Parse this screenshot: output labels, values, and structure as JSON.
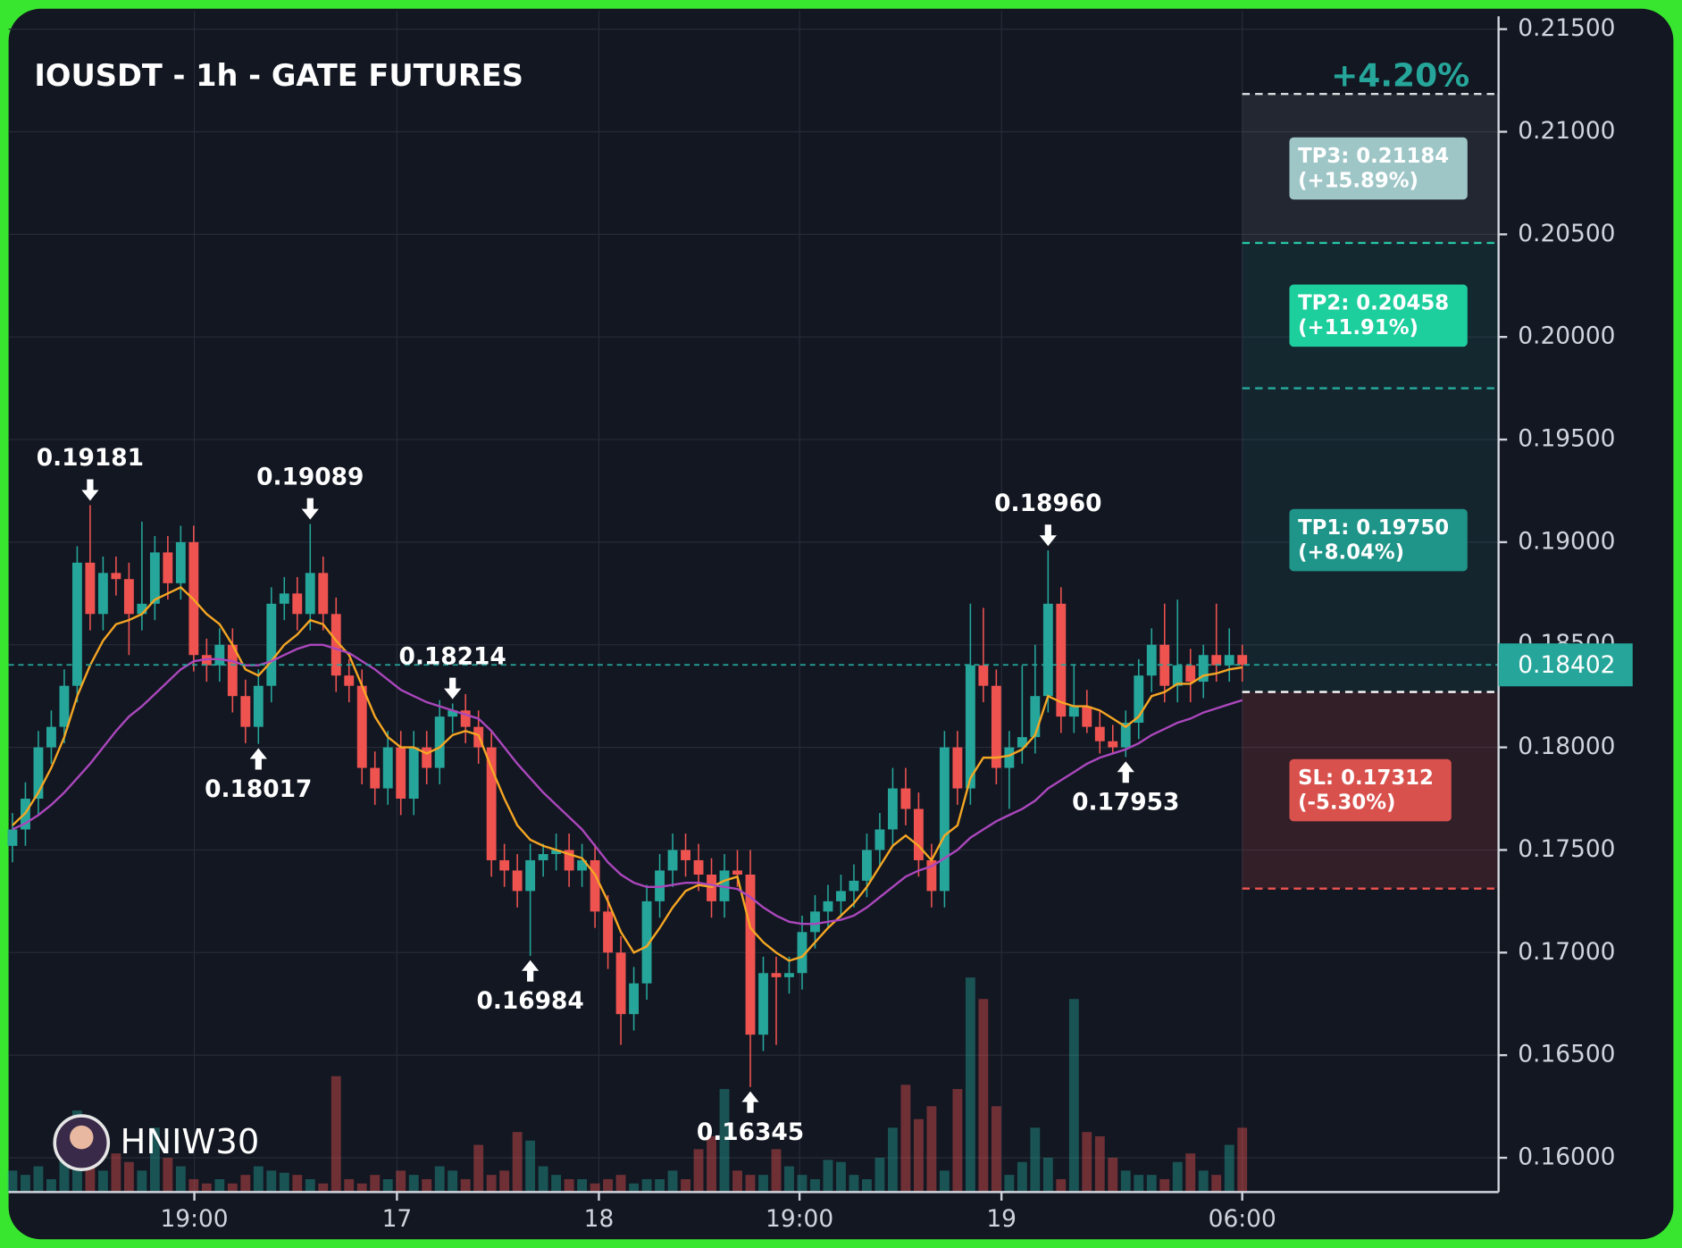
{
  "chart_data": {
    "type": "candlestick",
    "title": "IOUSDT - 1h - GATE FUTURES",
    "watermark": "HNIW30",
    "up_color": "#26a69a",
    "down_color": "#ef5350",
    "grid": true,
    "ylim": [
      0.15833,
      0.21589
    ],
    "yticks": [
      {
        "value": 0.16,
        "label": "0.16000"
      },
      {
        "value": 0.165,
        "label": "0.16500"
      },
      {
        "value": 0.17,
        "label": "0.17000"
      },
      {
        "value": 0.175,
        "label": "0.17500"
      },
      {
        "value": 0.18,
        "label": "0.18000"
      },
      {
        "value": 0.185,
        "label": "0.18500"
      },
      {
        "value": 0.19,
        "label": "0.19000"
      },
      {
        "value": 0.195,
        "label": "0.19500"
      },
      {
        "value": 0.2,
        "label": "0.20000"
      },
      {
        "value": 0.205,
        "label": "0.20500"
      },
      {
        "value": 0.21,
        "label": "0.21000"
      },
      {
        "value": 0.215,
        "label": "0.21500"
      }
    ],
    "xlim": [
      -0.3,
      114.8
    ],
    "xticks": [
      {
        "value": 14.05,
        "label": "19:00"
      },
      {
        "value": 29.7,
        "label": "17"
      },
      {
        "value": 45.3,
        "label": "18"
      },
      {
        "value": 60.8,
        "label": "19:00"
      },
      {
        "value": 76.4,
        "label": "19"
      },
      {
        "value": 95,
        "label": "06:00"
      }
    ],
    "x": [
      0,
      1,
      2,
      3,
      4,
      5,
      6,
      7,
      8,
      9,
      10,
      11,
      12,
      13,
      14,
      15,
      16,
      17,
      18,
      19,
      20,
      21,
      22,
      23,
      24,
      25,
      26,
      27,
      28,
      29,
      30,
      31,
      32,
      33,
      34,
      35,
      36,
      37,
      38,
      39,
      40,
      41,
      42,
      43,
      44,
      45,
      46,
      47,
      48,
      49,
      50,
      51,
      52,
      53,
      54,
      55,
      56,
      57,
      58,
      59,
      60,
      61,
      62,
      63,
      64,
      65,
      66,
      67,
      68,
      69,
      70,
      71,
      72,
      73,
      74,
      75,
      76,
      77,
      78,
      79,
      80,
      81,
      82,
      83,
      84,
      85,
      86,
      87,
      88,
      89,
      90,
      91,
      92,
      93,
      94,
      95
    ],
    "candles": [
      [
        0.1752,
        0.1768,
        0.1744,
        0.176
      ],
      [
        0.176,
        0.1783,
        0.1752,
        0.1775
      ],
      [
        0.1775,
        0.1808,
        0.1767,
        0.18
      ],
      [
        0.18,
        0.1818,
        0.1792,
        0.181
      ],
      [
        0.181,
        0.1838,
        0.1802,
        0.183
      ],
      [
        0.183,
        0.1898,
        0.1822,
        0.189
      ],
      [
        0.189,
        0.19181,
        0.1857,
        0.1865
      ],
      [
        0.1865,
        0.1893,
        0.1857,
        0.1885
      ],
      [
        0.1885,
        0.1893,
        0.1874,
        0.1882
      ],
      [
        0.1882,
        0.189,
        0.1845,
        0.1865
      ],
      [
        0.1865,
        0.191,
        0.1857,
        0.187
      ],
      [
        0.187,
        0.1903,
        0.1862,
        0.1895
      ],
      [
        0.1895,
        0.1903,
        0.1872,
        0.188
      ],
      [
        0.188,
        0.1908,
        0.1872,
        0.19
      ],
      [
        0.19,
        0.1908,
        0.1837,
        0.1845
      ],
      [
        0.1845,
        0.1853,
        0.1832,
        0.184
      ],
      [
        0.184,
        0.1858,
        0.1832,
        0.185
      ],
      [
        0.185,
        0.1858,
        0.1817,
        0.1825
      ],
      [
        0.1825,
        0.1833,
        0.1802,
        0.181
      ],
      [
        0.181,
        0.1838,
        0.18017,
        0.183
      ],
      [
        0.183,
        0.1878,
        0.1822,
        0.187
      ],
      [
        0.187,
        0.1883,
        0.1862,
        0.1875
      ],
      [
        0.1875,
        0.1883,
        0.1857,
        0.1865
      ],
      [
        0.1865,
        0.19089,
        0.1857,
        0.1885
      ],
      [
        0.1885,
        0.1893,
        0.1857,
        0.1865
      ],
      [
        0.1865,
        0.1873,
        0.1827,
        0.1835
      ],
      [
        0.1835,
        0.1843,
        0.1822,
        0.183
      ],
      [
        0.183,
        0.1838,
        0.1782,
        0.179
      ],
      [
        0.179,
        0.1798,
        0.1772,
        0.178
      ],
      [
        0.178,
        0.1808,
        0.1772,
        0.18
      ],
      [
        0.18,
        0.1808,
        0.1767,
        0.1775
      ],
      [
        0.1775,
        0.1808,
        0.1767,
        0.18
      ],
      [
        0.18,
        0.1808,
        0.1782,
        0.179
      ],
      [
        0.179,
        0.1823,
        0.1782,
        0.1815
      ],
      [
        0.1815,
        0.18214,
        0.1807,
        0.1818
      ],
      [
        0.1818,
        0.1826,
        0.1802,
        0.181
      ],
      [
        0.181,
        0.1818,
        0.1792,
        0.18
      ],
      [
        0.18,
        0.1808,
        0.1737,
        0.1745
      ],
      [
        0.1745,
        0.1753,
        0.1732,
        0.174
      ],
      [
        0.174,
        0.1748,
        0.1722,
        0.173
      ],
      [
        0.173,
        0.1753,
        0.16984,
        0.1745
      ],
      [
        0.1745,
        0.1753,
        0.1737,
        0.1748
      ],
      [
        0.1748,
        0.1758,
        0.174,
        0.175
      ],
      [
        0.175,
        0.1758,
        0.1732,
        0.174
      ],
      [
        0.174,
        0.1753,
        0.1732,
        0.1745
      ],
      [
        0.1745,
        0.1753,
        0.1712,
        0.172
      ],
      [
        0.172,
        0.1728,
        0.1692,
        0.17
      ],
      [
        0.17,
        0.1708,
        0.1655,
        0.167
      ],
      [
        0.167,
        0.1693,
        0.1662,
        0.1685
      ],
      [
        0.1685,
        0.1733,
        0.1677,
        0.1725
      ],
      [
        0.1725,
        0.1748,
        0.1717,
        0.174
      ],
      [
        0.174,
        0.1758,
        0.1732,
        0.175
      ],
      [
        0.175,
        0.1758,
        0.1737,
        0.1745
      ],
      [
        0.1745,
        0.1753,
        0.173,
        0.1738
      ],
      [
        0.1738,
        0.1746,
        0.1717,
        0.1725
      ],
      [
        0.1725,
        0.1748,
        0.1717,
        0.174
      ],
      [
        0.174,
        0.175,
        0.1732,
        0.1738
      ],
      [
        0.1738,
        0.175,
        0.16345,
        0.166
      ],
      [
        0.166,
        0.1698,
        0.1652,
        0.169
      ],
      [
        0.169,
        0.1698,
        0.1655,
        0.1688
      ],
      [
        0.1688,
        0.1698,
        0.168,
        0.169
      ],
      [
        0.169,
        0.1718,
        0.1682,
        0.171
      ],
      [
        0.171,
        0.1728,
        0.1702,
        0.172
      ],
      [
        0.172,
        0.1733,
        0.1712,
        0.1725
      ],
      [
        0.1725,
        0.1738,
        0.1717,
        0.173
      ],
      [
        0.173,
        0.1743,
        0.1722,
        0.1735
      ],
      [
        0.1735,
        0.1758,
        0.1727,
        0.175
      ],
      [
        0.175,
        0.1768,
        0.1742,
        0.176
      ],
      [
        0.176,
        0.179,
        0.1752,
        0.178
      ],
      [
        0.178,
        0.179,
        0.1762,
        0.177
      ],
      [
        0.177,
        0.1778,
        0.1737,
        0.1745
      ],
      [
        0.1745,
        0.1753,
        0.1722,
        0.173
      ],
      [
        0.173,
        0.1808,
        0.1722,
        0.18
      ],
      [
        0.18,
        0.1808,
        0.1772,
        0.178
      ],
      [
        0.178,
        0.187,
        0.1772,
        0.184
      ],
      [
        0.184,
        0.1868,
        0.1822,
        0.183
      ],
      [
        0.183,
        0.1838,
        0.1782,
        0.179
      ],
      [
        0.179,
        0.1808,
        0.177,
        0.18
      ],
      [
        0.18,
        0.184,
        0.1792,
        0.1805
      ],
      [
        0.1805,
        0.185,
        0.1797,
        0.1825
      ],
      [
        0.1825,
        0.1896,
        0.1817,
        0.187
      ],
      [
        0.187,
        0.1878,
        0.1807,
        0.1815
      ],
      [
        0.1815,
        0.184,
        0.1807,
        0.182
      ],
      [
        0.182,
        0.1828,
        0.1807,
        0.181
      ],
      [
        0.181,
        0.1818,
        0.1797,
        0.1803
      ],
      [
        0.1803,
        0.1811,
        0.1797,
        0.18
      ],
      [
        0.18,
        0.1818,
        0.17953,
        0.1812
      ],
      [
        0.1812,
        0.1843,
        0.1804,
        0.1835
      ],
      [
        0.1835,
        0.1858,
        0.1827,
        0.185
      ],
      [
        0.185,
        0.187,
        0.1822,
        0.183
      ],
      [
        0.183,
        0.1872,
        0.1822,
        0.184
      ],
      [
        0.184,
        0.1848,
        0.1822,
        0.1832
      ],
      [
        0.1832,
        0.185,
        0.1824,
        0.1845
      ],
      [
        0.1845,
        0.187,
        0.1832,
        0.184
      ],
      [
        0.184,
        0.1858,
        0.1832,
        0.1845
      ],
      [
        0.1845,
        0.185,
        0.1832,
        0.18402
      ]
    ],
    "volume_lim": [
      0,
      100
    ],
    "volumes": [
      10,
      8,
      12,
      6,
      20,
      38,
      32,
      10,
      18,
      14,
      10,
      30,
      16,
      12,
      6,
      4,
      6,
      4,
      8,
      12,
      10,
      9,
      8,
      6,
      4,
      54,
      6,
      4,
      8,
      6,
      10,
      8,
      6,
      12,
      10,
      6,
      22,
      8,
      10,
      28,
      24,
      12,
      8,
      6,
      6,
      4,
      6,
      8,
      4,
      6,
      6,
      10,
      6,
      20,
      26,
      48,
      10,
      8,
      8,
      20,
      12,
      8,
      6,
      15,
      14,
      8,
      6,
      16,
      30,
      50,
      34,
      40,
      10,
      48,
      100,
      90,
      40,
      8,
      14,
      30,
      16,
      6,
      90,
      28,
      26,
      16,
      10,
      8,
      8,
      6,
      14,
      18,
      10,
      8,
      22,
      30
    ],
    "series": [
      {
        "color": "#f5a623",
        "values": [
          0.1762,
          0.1768,
          0.1778,
          0.179,
          0.1805,
          0.1825,
          0.184,
          0.1852,
          0.186,
          0.1862,
          0.1865,
          0.1872,
          0.1875,
          0.1878,
          0.1872,
          0.1865,
          0.186,
          0.185,
          0.1838,
          0.1835,
          0.1842,
          0.185,
          0.1855,
          0.1862,
          0.186,
          0.1852,
          0.1845,
          0.183,
          0.1815,
          0.1805,
          0.18,
          0.18,
          0.1797,
          0.18,
          0.1806,
          0.1808,
          0.1806,
          0.179,
          0.1775,
          0.1762,
          0.1755,
          0.1752,
          0.175,
          0.1748,
          0.1746,
          0.1738,
          0.1725,
          0.171,
          0.17,
          0.1703,
          0.1712,
          0.1722,
          0.173,
          0.1733,
          0.1732,
          0.1735,
          0.1737,
          0.1712,
          0.1705,
          0.17,
          0.1696,
          0.1698,
          0.1705,
          0.1712,
          0.1718,
          0.1724,
          0.1732,
          0.1742,
          0.1752,
          0.1757,
          0.1752,
          0.1745,
          0.1757,
          0.1762,
          0.1785,
          0.1795,
          0.1795,
          0.1796,
          0.1799,
          0.1806,
          0.1825,
          0.1822,
          0.182,
          0.182,
          0.1818,
          0.1814,
          0.181,
          0.1815,
          0.1825,
          0.1827,
          0.1831,
          0.1831,
          0.1835,
          0.1836,
          0.1838,
          0.1839
        ]
      },
      {
        "color": "#ab47bc",
        "values": [
          0.176,
          0.1763,
          0.1767,
          0.1772,
          0.1778,
          0.1785,
          0.1792,
          0.18,
          0.1808,
          0.1815,
          0.182,
          0.1826,
          0.1832,
          0.1838,
          0.1842,
          0.1843,
          0.1843,
          0.1842,
          0.184,
          0.184,
          0.1842,
          0.1845,
          0.1848,
          0.185,
          0.185,
          0.1848,
          0.1846,
          0.1842,
          0.1838,
          0.1833,
          0.1828,
          0.1825,
          0.1822,
          0.182,
          0.1818,
          0.1816,
          0.1814,
          0.1808,
          0.18,
          0.1792,
          0.1785,
          0.1778,
          0.1772,
          0.1766,
          0.176,
          0.1752,
          0.1744,
          0.1738,
          0.1734,
          0.1732,
          0.1732,
          0.1733,
          0.1734,
          0.1734,
          0.1733,
          0.1732,
          0.1731,
          0.1727,
          0.1722,
          0.1718,
          0.1715,
          0.1714,
          0.1714,
          0.1715,
          0.1716,
          0.1718,
          0.1722,
          0.1727,
          0.1732,
          0.1737,
          0.174,
          0.1742,
          0.1746,
          0.175,
          0.1756,
          0.176,
          0.1764,
          0.1767,
          0.177,
          0.1774,
          0.178,
          0.1784,
          0.1788,
          0.1792,
          0.1795,
          0.1797,
          0.1799,
          0.1802,
          0.1806,
          0.1809,
          0.1812,
          0.1814,
          0.1817,
          0.1819,
          0.1821,
          0.1823
        ]
      }
    ],
    "annotations": [
      {
        "x": 6,
        "value": 0.19181,
        "label": "0.19181"
      },
      {
        "x": 19,
        "value": 0.18017,
        "label": "0.18017"
      },
      {
        "x": 23,
        "value": 0.19089,
        "label": "0.19089"
      },
      {
        "x": 34,
        "value": 0.18214,
        "label": "0.18214"
      },
      {
        "x": 40,
        "value": 0.16984,
        "label": "0.16984"
      },
      {
        "x": 57,
        "value": 0.16345,
        "label": "0.16345"
      },
      {
        "x": 80,
        "value": 0.1896,
        "label": "0.18960"
      },
      {
        "x": 86,
        "value": 0.17953,
        "label": "0.17953"
      }
    ],
    "last_price": 0.18402,
    "entry": 0.1827,
    "change_label": "+4.20%",
    "levels": [
      {
        "value": 0.21184,
        "label": "TP3: 0.21184",
        "change": "(+15.89%)",
        "line_color": "#d8dde0",
        "box_color": "#9fc6c7",
        "zone_color": "rgba(255,255,255,0.07)"
      },
      {
        "value": 0.20458,
        "label": "TP2: 0.20458",
        "change": "(+11.91%)",
        "line_color": "#26c6a6",
        "box_color": "#1ecf9e",
        "zone_color": "rgba(38,166,154,0.12)"
      },
      {
        "value": 0.1975,
        "label": "TP1: 0.19750",
        "change": "(+8.04%)",
        "line_color": "#26a69a",
        "box_color": "#1f9488",
        "zone_color": "rgba(38,166,154,0.10)"
      },
      {
        "value": 0.17312,
        "label": "SL: 0.17312",
        "change": "(-5.30%)",
        "line_color": "#ef5350",
        "box_color": "#d9514d",
        "zone_color": "rgba(239,83,80,0.15)"
      }
    ]
  }
}
